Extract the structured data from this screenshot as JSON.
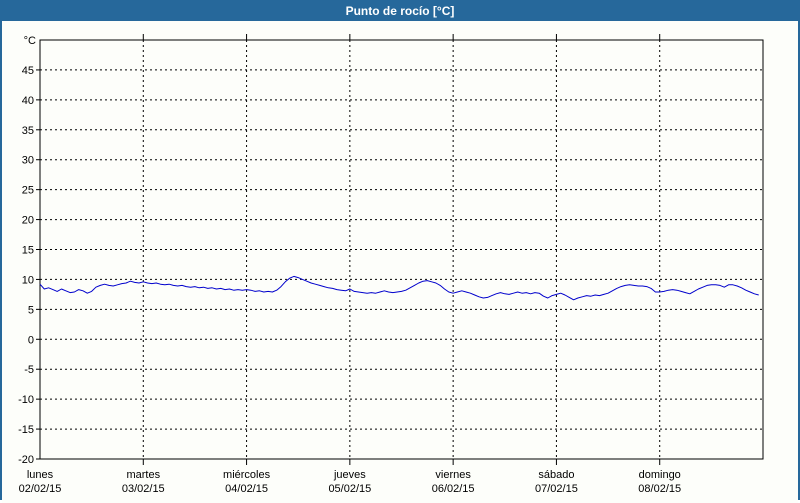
{
  "window": {
    "title": "Punto de rocío [°C]"
  },
  "colors": {
    "accent": "#26689B",
    "title_text": "#FFFFFF",
    "background": "#FDFEFA",
    "grid": "#000000",
    "line": "#0000CC"
  },
  "chart_data": {
    "type": "line",
    "title": "Punto de rocío [°C]",
    "unit_label": "°C",
    "xlabel": "",
    "ylabel": "°C",
    "ylim": [
      -20,
      50
    ],
    "ytick_step": 5,
    "ytick_labels": [
      "45",
      "40",
      "35",
      "30",
      "25",
      "20",
      "15",
      "10",
      "5",
      "0",
      "-5",
      "-10",
      "-15",
      "-20"
    ],
    "grid": "dashed",
    "legend": "none",
    "x_axis": {
      "sample_interval_hours": 1,
      "days": [
        {
          "name": "lunes",
          "date": "02/02/15"
        },
        {
          "name": "martes",
          "date": "03/02/15"
        },
        {
          "name": "miércoles",
          "date": "04/02/15"
        },
        {
          "name": "jueves",
          "date": "05/02/15"
        },
        {
          "name": "viernes",
          "date": "06/02/15"
        },
        {
          "name": "sábado",
          "date": "07/02/15"
        },
        {
          "name": "domingo",
          "date": "08/02/15"
        }
      ]
    },
    "series": [
      {
        "name": "Punto de rocío",
        "unit": "°C",
        "color": "#0000CC",
        "values": [
          9.2,
          8.4,
          8.6,
          8.3,
          8.0,
          8.4,
          8.1,
          7.8,
          7.9,
          8.3,
          8.1,
          7.7,
          8.0,
          8.7,
          9.0,
          9.2,
          9.0,
          8.9,
          9.1,
          9.3,
          9.4,
          9.7,
          9.5,
          9.4,
          9.6,
          9.4,
          9.3,
          9.4,
          9.2,
          9.1,
          9.2,
          9.0,
          8.9,
          9.0,
          8.8,
          8.7,
          8.8,
          8.6,
          8.7,
          8.5,
          8.6,
          8.4,
          8.5,
          8.3,
          8.4,
          8.2,
          8.3,
          8.2,
          8.3,
          8.2,
          8.0,
          8.1,
          7.9,
          8.0,
          7.9,
          8.2,
          8.8,
          9.6,
          10.2,
          10.5,
          10.3,
          10.0,
          9.7,
          9.4,
          9.2,
          9.0,
          8.8,
          8.6,
          8.5,
          8.3,
          8.2,
          8.1,
          8.4,
          8.0,
          7.9,
          7.8,
          7.7,
          7.8,
          7.7,
          7.9,
          8.1,
          7.9,
          7.8,
          7.9,
          8.0,
          8.2,
          8.6,
          9.0,
          9.4,
          9.7,
          9.8,
          9.6,
          9.4,
          9.0,
          8.4,
          7.9,
          7.7,
          7.9,
          8.1,
          7.9,
          7.7,
          7.4,
          7.1,
          6.9,
          7.0,
          7.3,
          7.6,
          7.8,
          7.6,
          7.5,
          7.7,
          7.9,
          7.7,
          7.8,
          7.6,
          7.8,
          7.7,
          7.2,
          6.9,
          7.3,
          7.5,
          7.7,
          7.4,
          7.0,
          6.6,
          6.9,
          7.1,
          7.3,
          7.2,
          7.4,
          7.3,
          7.5,
          7.7,
          8.1,
          8.5,
          8.8,
          9.0,
          9.1,
          9.0,
          8.9,
          8.9,
          8.8,
          8.5,
          7.9,
          7.9,
          8.0,
          8.2,
          8.3,
          8.2,
          8.0,
          7.8,
          7.6,
          8.0,
          8.4,
          8.7,
          9.0,
          9.1,
          9.1,
          9.0,
          8.7,
          9.1,
          9.1,
          8.9,
          8.6,
          8.2,
          7.9,
          7.6,
          7.4
        ]
      }
    ]
  }
}
